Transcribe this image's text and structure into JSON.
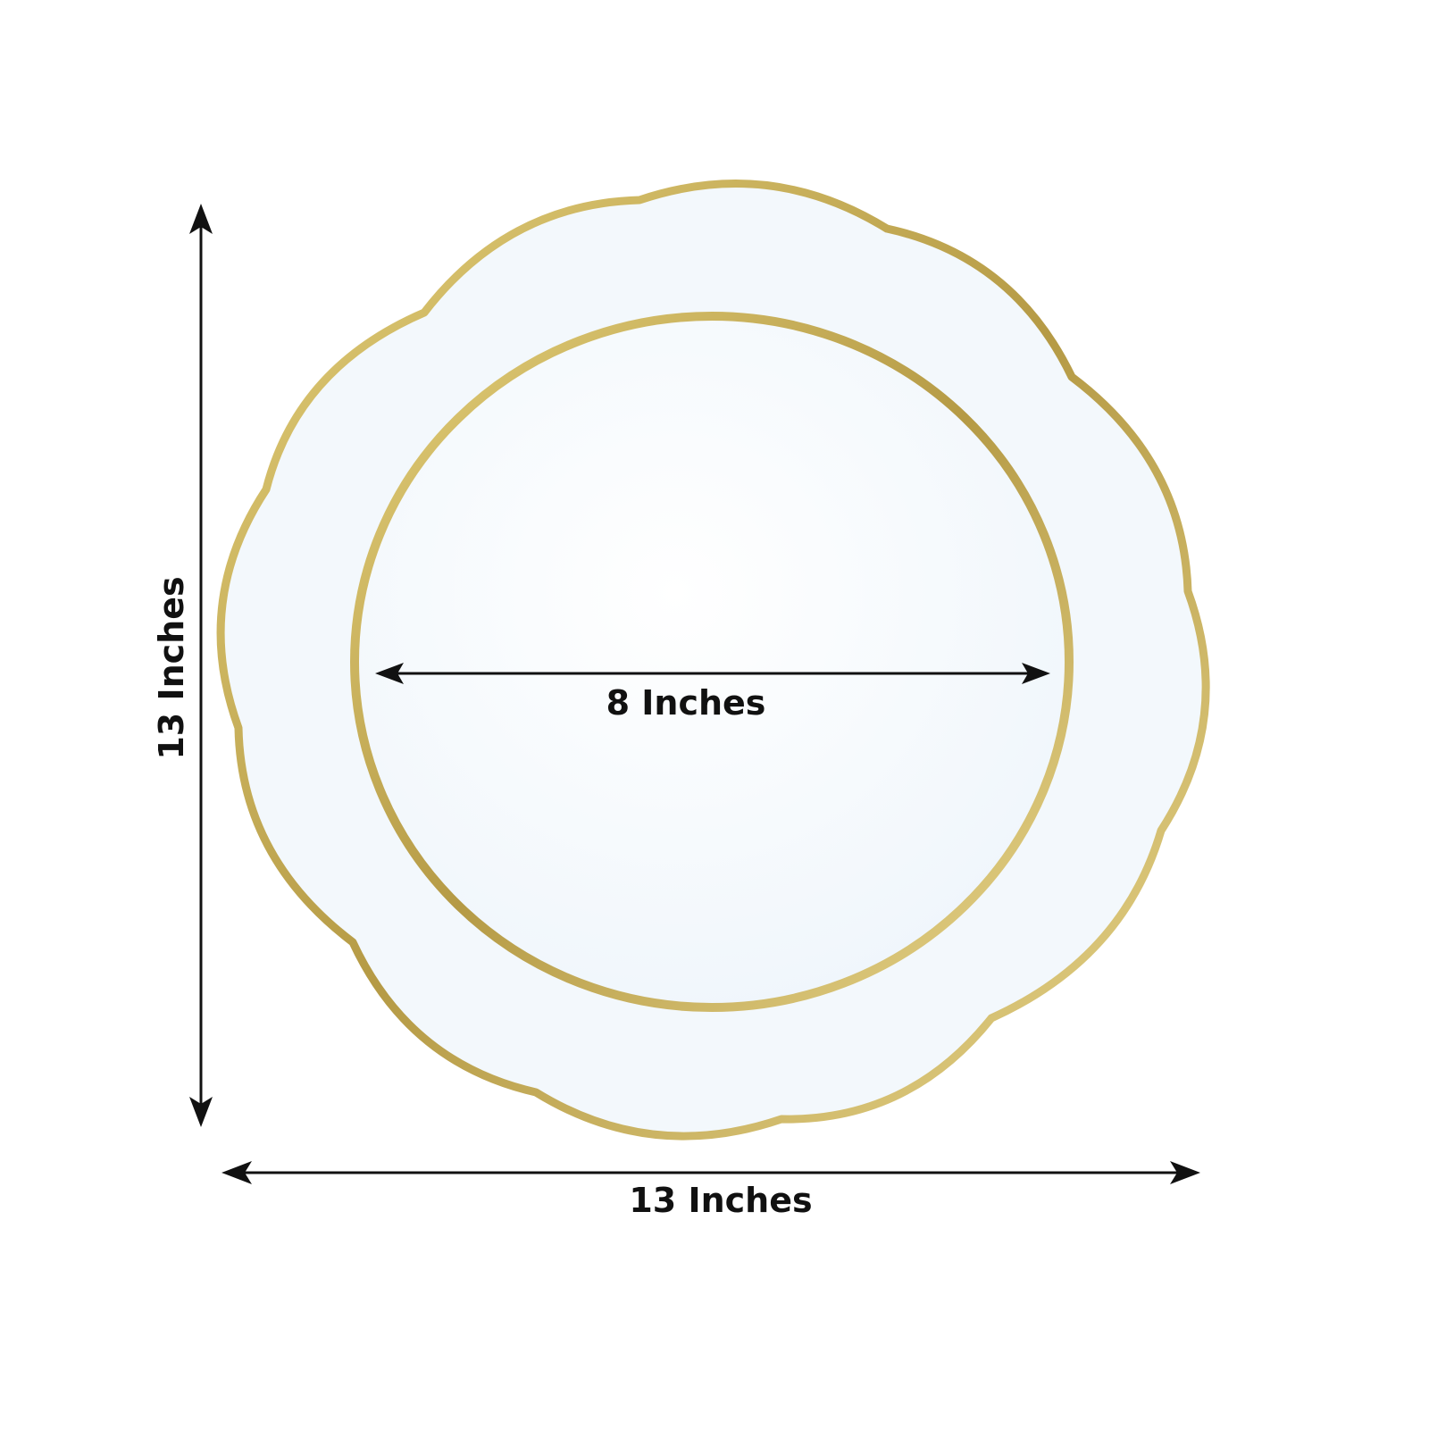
{
  "dimensions": {
    "height_label": "13 Inches",
    "width_label": "13 Inches",
    "inner_diameter_label": "8 Inches"
  },
  "colors": {
    "gold_rim": "#c9b25a",
    "plate_surface": "#f3f8fc",
    "arrow": "#111111"
  }
}
